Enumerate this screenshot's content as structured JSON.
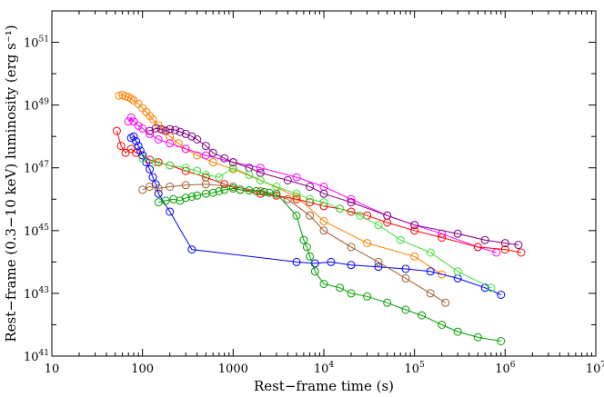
{
  "chart_data": {
    "type": "scatter",
    "title": "",
    "xlabel": "Rest−frame  time (s)",
    "ylabel": "Rest−frame  (0.3−10 keV)  luminosity  (erg s⁻¹)",
    "x_scale": "log",
    "y_scale": "log",
    "xlim": [
      10,
      10000000
    ],
    "ylim": [
      1e+41,
      1e+52
    ],
    "grid": false,
    "legend": "none",
    "x_ticks": [
      {
        "value": 10,
        "label": "10",
        "sup": ""
      },
      {
        "value": 100,
        "label": "100",
        "sup": ""
      },
      {
        "value": 1000,
        "label": "1000",
        "sup": ""
      },
      {
        "value": 10000,
        "label": "10",
        "sup": "4"
      },
      {
        "value": 100000,
        "label": "10",
        "sup": "5"
      },
      {
        "value": 1000000,
        "label": "10",
        "sup": "6"
      },
      {
        "value": 10000000,
        "label": "10",
        "sup": "7"
      }
    ],
    "y_ticks": [
      {
        "value": 1e+41,
        "label": "10",
        "sup": "41"
      },
      {
        "value": 1e+43,
        "label": "10",
        "sup": "43"
      },
      {
        "value": 1e+45,
        "label": "10",
        "sup": "45"
      },
      {
        "value": 1e+47,
        "label": "10",
        "sup": "47"
      },
      {
        "value": 1e+49,
        "label": "10",
        "sup": "49"
      },
      {
        "value": 1e+51,
        "label": "10",
        "sup": "51"
      }
    ],
    "series": [
      {
        "color": "#ff8000",
        "x": [
          55,
          60,
          65,
          70,
          75,
          80,
          90,
          100,
          110,
          120,
          130,
          150,
          170,
          200,
          250,
          300,
          400,
          600,
          1000,
          2000,
          5000,
          10000,
          30000,
          100000,
          200000
        ],
        "y": [
          2e+49,
          2.1e+49,
          1.9e+49,
          1.8e+49,
          1.6e+49,
          1.4e+49,
          1.1e+49,
          8e+48,
          6e+48,
          4.5e+48,
          3.5e+48,
          2.3e+48,
          1.6e+48,
          1e+48,
          6e+47,
          4e+47,
          2.5e+47,
          1.5e+47,
          9e+46,
          4e+46,
          1.2e+46,
          2e+45,
          4e+44,
          1.5e+44,
          4e+43
        ]
      },
      {
        "color": "#ff00ff",
        "x": [
          70,
          75,
          80,
          90,
          100,
          120,
          150,
          200,
          300,
          500,
          1000,
          2000,
          5000,
          10000,
          20000,
          50000,
          100000,
          200000,
          500000,
          800000
        ],
        "y": [
          3e+48,
          4e+48,
          3e+48,
          2.2e+48,
          1.8e+48,
          1.2e+48,
          8e+47,
          6e+47,
          4e+47,
          2.5e+47,
          1.5e+47,
          1e+47,
          5e+46,
          2.5e+46,
          1e+46,
          3e+45,
          1.5e+45,
          8e+44,
          3e+44,
          2e+44
        ]
      },
      {
        "color": "#800080",
        "x": [
          120,
          140,
          160,
          180,
          200,
          230,
          260,
          300,
          350,
          400,
          500,
          600,
          800,
          1000,
          1500,
          2000,
          4000,
          7000,
          10000,
          20000,
          50000,
          100000,
          300000,
          600000,
          1000000,
          1400000
        ],
        "y": [
          1.5e+48,
          1.8e+48,
          1.7e+48,
          1.5e+48,
          1.7e+48,
          1.6e+48,
          1.4e+48,
          1.2e+48,
          1e+48,
          8e+47,
          5e+47,
          3e+47,
          2e+47,
          1.5e+47,
          1e+47,
          7e+46,
          4e+46,
          2.5e+46,
          1.5e+46,
          8e+45,
          3e+45,
          1.5e+45,
          8e+44,
          5e+44,
          4e+44,
          3.5e+44
        ]
      },
      {
        "color": "#ff0000",
        "x": [
          52,
          58,
          65,
          75,
          85,
          100,
          120,
          150,
          200,
          300,
          500,
          800,
          1200,
          2000,
          3000,
          5000,
          7000,
          10000,
          15000,
          20000,
          30000,
          50000,
          100000,
          200000,
          500000,
          1000000,
          1500000
        ],
        "y": [
          1.5e+48,
          5e+47,
          3e+47,
          4e+47,
          3e+47,
          2.5e+47,
          1.8e+47,
          1.5e+47,
          1.2e+47,
          8e+46,
          5e+46,
          3e+46,
          2e+46,
          1.5e+46,
          1.3e+46,
          1e+46,
          8e+45,
          6e+45,
          5e+45,
          4e+45,
          3e+45,
          1.8e+45,
          1e+45,
          6e+44,
          3e+44,
          2.5e+44,
          2e+44
        ]
      },
      {
        "color": "#0000ff",
        "x": [
          75,
          80,
          85,
          90,
          95,
          100,
          110,
          120,
          130,
          140,
          150,
          200,
          350,
          5000,
          8000,
          12000,
          20000,
          40000,
          80000,
          150000,
          300000,
          600000,
          900000
        ],
        "y": [
          9e+47,
          1e+48,
          7e+47,
          5e+47,
          3.5e+47,
          2.5e+47,
          1.5e+47,
          9e+46,
          5e+46,
          3e+46,
          1.5e+46,
          4e+45,
          2.5e+44,
          1e+44,
          9e+43,
          1e+44,
          8e+43,
          7e+43,
          6e+43,
          5e+43,
          3e+43,
          1.5e+43,
          9e+42
        ]
      },
      {
        "color": "#a06030",
        "x": [
          100,
          120,
          150,
          200,
          300,
          500,
          1000,
          2000,
          4000,
          7000,
          10000,
          20000,
          40000,
          80000,
          150000,
          220000
        ],
        "y": [
          2e+46,
          2.5e+46,
          2.2e+46,
          2.5e+46,
          2.8e+46,
          3e+46,
          2.5e+46,
          1.8e+46,
          1e+46,
          3e+45,
          1e+45,
          3e+44,
          1e+44,
          3e+43,
          1e+43,
          5e+42
        ]
      },
      {
        "color": "#40e040",
        "x": [
          100,
          140,
          200,
          300,
          400,
          500,
          700,
          1000,
          1500,
          2000,
          3000,
          5000,
          7000,
          10000,
          15000,
          25000,
          40000,
          70000,
          150000,
          300000,
          700000
        ],
        "y": [
          2e+47,
          1.5e+47,
          1.2e+47,
          1e+47,
          8e+46,
          6e+46,
          5e+46,
          1e+47,
          6e+46,
          4e+46,
          2.5e+46,
          1.5e+46,
          1e+46,
          8e+45,
          5e+45,
          3e+45,
          1.5e+45,
          5e+44,
          2e+44,
          5e+43,
          1.5e+43
        ]
      },
      {
        "color": "#00a000",
        "x": [
          150,
          180,
          220,
          260,
          300,
          350,
          400,
          500,
          600,
          700,
          800,
          1000,
          1200,
          1500,
          1800,
          2200,
          2500,
          3000,
          5000,
          6000,
          6500,
          7000,
          8000,
          10000,
          15000,
          20000,
          30000,
          50000,
          80000,
          120000,
          200000,
          300000,
          500000,
          900000
        ],
        "y": [
          8e+45,
          9e+45,
          1e+46,
          9e+45,
          1.1e+46,
          1.2e+46,
          1.3e+46,
          1.5e+46,
          1.6e+46,
          1.8e+46,
          2e+46,
          2.2e+46,
          2e+46,
          1.9e+46,
          1.8e+46,
          1.7e+46,
          1.6e+46,
          1.5e+46,
          3e+45,
          5e+44,
          3e+44,
          1.5e+44,
          5e+43,
          2e+43,
          1.5e+43,
          1e+43,
          8e+42,
          5e+42,
          3e+42,
          2e+42,
          1e+42,
          6e+41,
          4e+41,
          3e+41
        ]
      }
    ]
  }
}
